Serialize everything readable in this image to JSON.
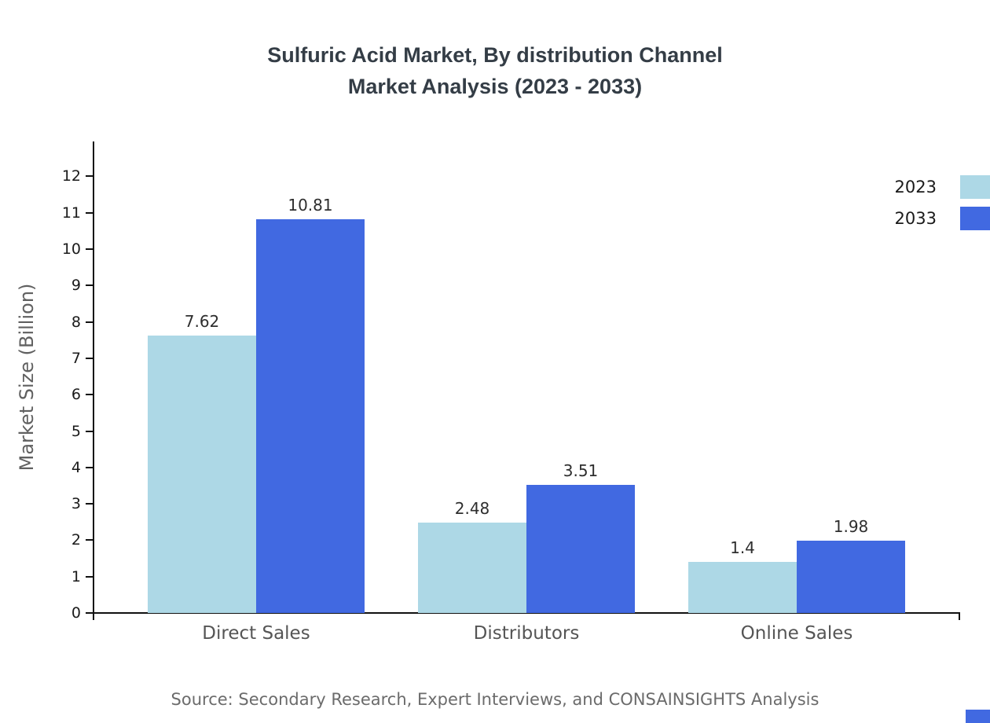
{
  "title": {
    "line1": "Sulfuric Acid Market, By distribution Channel",
    "line2": "Market Analysis (2023 - 2033)"
  },
  "chart_data": {
    "type": "bar",
    "title": "Sulfuric Acid Market, By distribution Channel Market Analysis (2023 - 2033)",
    "categories": [
      "Direct Sales",
      "Distributors",
      "Online Sales"
    ],
    "series": [
      {
        "name": "2023",
        "color": "#ADD8E6",
        "values": [
          7.62,
          2.48,
          1.4
        ]
      },
      {
        "name": "2033",
        "color": "#4169E1",
        "values": [
          10.81,
          3.51,
          1.98
        ]
      }
    ],
    "xlabel": "",
    "ylabel": "Market Size (Billion)",
    "ylim": [
      0,
      12
    ],
    "yticks": [
      0,
      1,
      2,
      3,
      4,
      5,
      6,
      7,
      8,
      9,
      10,
      11,
      12
    ],
    "grid": false,
    "legend_position": "top-right",
    "value_labels": true
  },
  "source": "Source: Secondary Research, Expert Interviews, and CONSAINSIGHTS Analysis"
}
